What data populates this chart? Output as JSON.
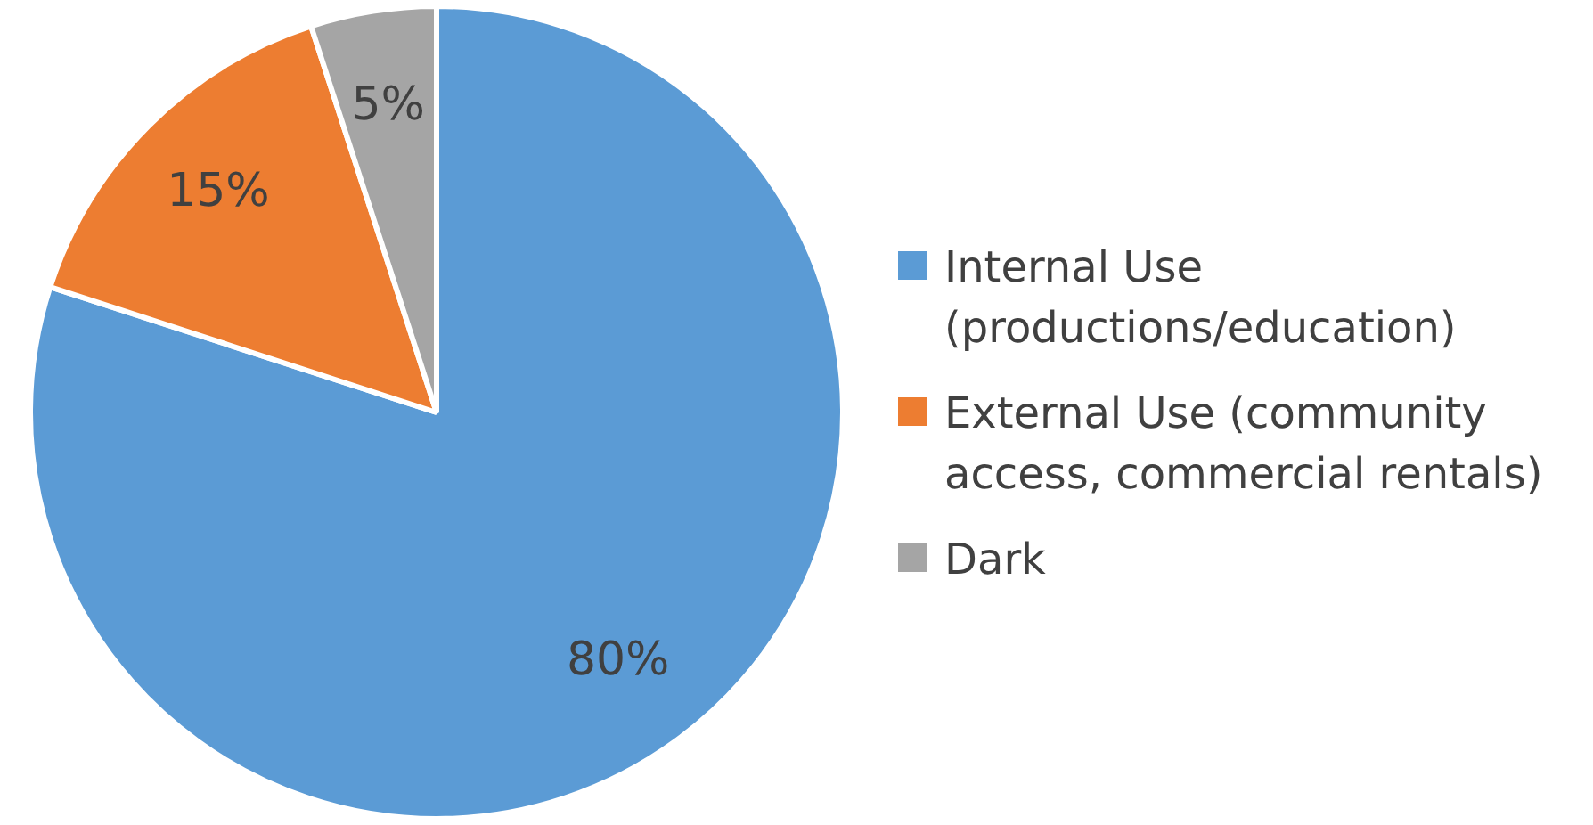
{
  "chart_data": {
    "type": "pie",
    "categories": [
      "Internal Use (productions/education)",
      "External Use (community access, commercial rentals)",
      "Dark"
    ],
    "values": [
      80,
      15,
      5
    ],
    "colors": [
      "#5b9bd5",
      "#ed7d31",
      "#a5a5a5"
    ],
    "value_labels": [
      "80%",
      "15%",
      "5%"
    ],
    "legend": "right"
  }
}
